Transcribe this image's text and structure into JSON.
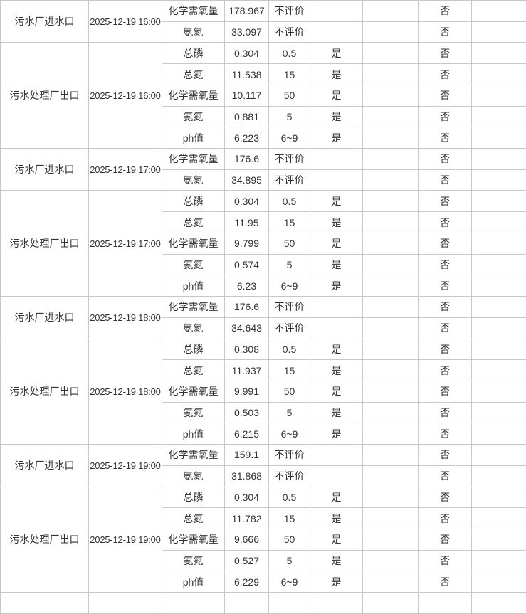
{
  "table": {
    "labels": {
      "yes": "是",
      "no": "否",
      "not_evaluated": "不评价"
    },
    "accent_colors": {
      "border": "#c8c8c8",
      "text": "#333333"
    },
    "groups": [
      {
        "location": "污水厂进水口",
        "datetime": "2025-12-19 16:00",
        "rows": [
          {
            "param": "化学需氧量",
            "value": "178.967",
            "limit": "不评价",
            "pass": "",
            "exceed": "否"
          },
          {
            "param": "氨氮",
            "value": "33.097",
            "limit": "不评价",
            "pass": "",
            "exceed": "否"
          }
        ]
      },
      {
        "location": "污水处理厂出口",
        "datetime": "2025-12-19 16:00",
        "rows": [
          {
            "param": "总磷",
            "value": "0.304",
            "limit": "0.5",
            "pass": "是",
            "exceed": "否"
          },
          {
            "param": "总氮",
            "value": "11.538",
            "limit": "15",
            "pass": "是",
            "exceed": "否"
          },
          {
            "param": "化学需氧量",
            "value": "10.117",
            "limit": "50",
            "pass": "是",
            "exceed": "否"
          },
          {
            "param": "氨氮",
            "value": "0.881",
            "limit": "5",
            "pass": "是",
            "exceed": "否"
          },
          {
            "param": "ph值",
            "value": "6.223",
            "limit": "6~9",
            "pass": "是",
            "exceed": "否"
          }
        ]
      },
      {
        "location": "污水厂进水口",
        "datetime": "2025-12-19 17:00",
        "rows": [
          {
            "param": "化学需氧量",
            "value": "176.6",
            "limit": "不评价",
            "pass": "",
            "exceed": "否"
          },
          {
            "param": "氨氮",
            "value": "34.895",
            "limit": "不评价",
            "pass": "",
            "exceed": "否"
          }
        ]
      },
      {
        "location": "污水处理厂出口",
        "datetime": "2025-12-19 17:00",
        "rows": [
          {
            "param": "总磷",
            "value": "0.304",
            "limit": "0.5",
            "pass": "是",
            "exceed": "否"
          },
          {
            "param": "总氮",
            "value": "11.95",
            "limit": "15",
            "pass": "是",
            "exceed": "否"
          },
          {
            "param": "化学需氧量",
            "value": "9.799",
            "limit": "50",
            "pass": "是",
            "exceed": "否"
          },
          {
            "param": "氨氮",
            "value": "0.574",
            "limit": "5",
            "pass": "是",
            "exceed": "否"
          },
          {
            "param": "ph值",
            "value": "6.23",
            "limit": "6~9",
            "pass": "是",
            "exceed": "否"
          }
        ]
      },
      {
        "location": "污水厂进水口",
        "datetime": "2025-12-19 18:00",
        "rows": [
          {
            "param": "化学需氧量",
            "value": "176.6",
            "limit": "不评价",
            "pass": "",
            "exceed": "否"
          },
          {
            "param": "氨氮",
            "value": "34.643",
            "limit": "不评价",
            "pass": "",
            "exceed": "否"
          }
        ]
      },
      {
        "location": "污水处理厂出口",
        "datetime": "2025-12-19 18:00",
        "rows": [
          {
            "param": "总磷",
            "value": "0.308",
            "limit": "0.5",
            "pass": "是",
            "exceed": "否"
          },
          {
            "param": "总氮",
            "value": "11.937",
            "limit": "15",
            "pass": "是",
            "exceed": "否"
          },
          {
            "param": "化学需氧量",
            "value": "9.991",
            "limit": "50",
            "pass": "是",
            "exceed": "否"
          },
          {
            "param": "氨氮",
            "value": "0.503",
            "limit": "5",
            "pass": "是",
            "exceed": "否"
          },
          {
            "param": "ph值",
            "value": "6.215",
            "limit": "6~9",
            "pass": "是",
            "exceed": "否"
          }
        ]
      },
      {
        "location": "污水厂进水口",
        "datetime": "2025-12-19 19:00",
        "rows": [
          {
            "param": "化学需氧量",
            "value": "159.1",
            "limit": "不评价",
            "pass": "",
            "exceed": "否"
          },
          {
            "param": "氨氮",
            "value": "31.868",
            "limit": "不评价",
            "pass": "",
            "exceed": "否"
          }
        ]
      },
      {
        "location": "污水处理厂出口",
        "datetime": "2025-12-19 19:00",
        "rows": [
          {
            "param": "总磷",
            "value": "0.304",
            "limit": "0.5",
            "pass": "是",
            "exceed": "否"
          },
          {
            "param": "总氮",
            "value": "11.782",
            "limit": "15",
            "pass": "是",
            "exceed": "否"
          },
          {
            "param": "化学需氧量",
            "value": "9.666",
            "limit": "50",
            "pass": "是",
            "exceed": "否"
          },
          {
            "param": "氨氮",
            "value": "0.527",
            "limit": "5",
            "pass": "是",
            "exceed": "否"
          },
          {
            "param": "ph值",
            "value": "6.229",
            "limit": "6~9",
            "pass": "是",
            "exceed": "否"
          }
        ]
      }
    ]
  }
}
